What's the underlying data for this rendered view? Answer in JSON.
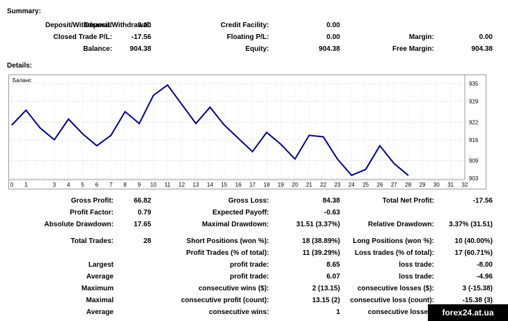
{
  "summary": {
    "title": "Summary:",
    "rows": [
      [
        {
          "label": "Deposit/Withdrawal:",
          "value": "0.00"
        },
        {
          "label": "Credit Facility:",
          "value": "0.00"
        },
        {
          "label": "",
          "value": ""
        }
      ],
      [
        {
          "label": "Closed Trade P/L:",
          "value": "-17.56"
        },
        {
          "label": "Floating P/L:",
          "value": "0.00"
        },
        {
          "label": "Margin:",
          "value": "0.00"
        }
      ],
      [
        {
          "label": "Balance:",
          "value": "904.38"
        },
        {
          "label": "Equity:",
          "value": "904.38"
        },
        {
          "label": "Free Margin:",
          "value": "904.38"
        }
      ]
    ]
  },
  "details": {
    "title": "Details:",
    "chart_label": "Баланс"
  },
  "chart_data": {
    "type": "line",
    "x_ticks": [
      0,
      1,
      3,
      4,
      5,
      6,
      7,
      8,
      9,
      10,
      11,
      12,
      13,
      14,
      15,
      16,
      17,
      18,
      19,
      20,
      21,
      22,
      23,
      24,
      25,
      26,
      27,
      28,
      29,
      30,
      31,
      32
    ],
    "y_ticks": [
      903,
      909,
      916,
      922,
      929,
      935
    ],
    "ylim": [
      903,
      935
    ],
    "xlim": [
      0,
      32
    ],
    "line_color": "#00008b",
    "series": [
      {
        "x": [
          0,
          1,
          2,
          3,
          4,
          5,
          6,
          7,
          8,
          9,
          10,
          11,
          12,
          13,
          14,
          15,
          16,
          17,
          18,
          19,
          20,
          21,
          22,
          23,
          24,
          25,
          26,
          27,
          28
        ],
        "values": [
          921,
          926,
          920,
          916,
          923,
          918,
          914,
          917.5,
          925.5,
          921.5,
          931,
          934.5,
          928,
          921.5,
          927,
          921,
          916.5,
          912,
          918.5,
          914.5,
          909.5,
          917.5,
          917,
          909.5,
          904,
          906,
          914,
          908,
          904
        ]
      }
    ]
  },
  "stats": {
    "row1": [
      {
        "label": "Gross Profit:",
        "value": "66.82"
      },
      {
        "label": "Gross Loss:",
        "value": "84.38"
      },
      {
        "label": "Total Net Profit:",
        "value": "-17.56"
      }
    ],
    "row2": [
      {
        "label": "Profit Factor:",
        "value": "0.79"
      },
      {
        "label": "Expected Payoff:",
        "value": "-0.63"
      },
      {
        "label": "",
        "value": ""
      }
    ],
    "row3": [
      {
        "label": "Absolute Drawdown:",
        "value": "17.65"
      },
      {
        "label": "Maximal Drawdown:",
        "value": "31.51 (3.37%)"
      },
      {
        "label": "Relative Drawdown:",
        "value": "3.37% (31.51)"
      }
    ],
    "trades": [
      [
        {
          "label": "Total Trades:",
          "value": "28"
        },
        {
          "label": "Short Positions (won %):",
          "value": "18 (38.89%)"
        },
        {
          "label": "Long Positions (won %):",
          "value": "10 (40.00%)"
        }
      ],
      [
        {
          "label": "",
          "value": ""
        },
        {
          "label": "Profit Trades (% of total):",
          "value": "11 (39.29%)"
        },
        {
          "label": "Loss trades (% of total):",
          "value": "17 (60.71%)"
        }
      ],
      [
        {
          "label": "Largest",
          "value": ""
        },
        {
          "label": "profit trade:",
          "value": "8.65"
        },
        {
          "label": "loss trade:",
          "value": "-8.00"
        }
      ],
      [
        {
          "label": "Average",
          "value": ""
        },
        {
          "label": "profit trade:",
          "value": "6.07"
        },
        {
          "label": "loss trade:",
          "value": "-4.96"
        }
      ],
      [
        {
          "label": "Maximum",
          "value": ""
        },
        {
          "label": "consecutive wins ($):",
          "value": "2 (13.15)"
        },
        {
          "label": "consecutive losses ($):",
          "value": "3 (-15.38)"
        }
      ],
      [
        {
          "label": "Maximal",
          "value": ""
        },
        {
          "label": "consecutive profit (count):",
          "value": "13.15 (2)"
        },
        {
          "label": "consecutive loss (count):",
          "value": "-15.38 (3)"
        }
      ],
      [
        {
          "label": "Average",
          "value": ""
        },
        {
          "label": "consecutive wins:",
          "value": "1"
        },
        {
          "label": "consecutive losses:",
          "value": ""
        }
      ]
    ]
  },
  "watermark": "forex24.at.ua"
}
